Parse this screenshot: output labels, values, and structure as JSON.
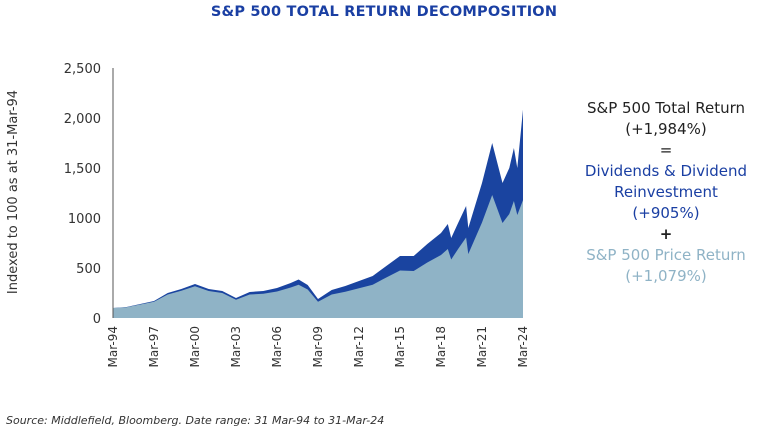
{
  "chart_data": {
    "type": "area",
    "title": "S&P 500 TOTAL RETURN DECOMPOSITION",
    "ylabel": "Indexed to 100 as at 31-Mar-94",
    "xlabel": "",
    "ylim": [
      0,
      2500
    ],
    "yticks": [
      "0",
      "500",
      "1000",
      "1,500",
      "2,000",
      "2,500"
    ],
    "ytick_values": [
      0,
      500,
      1000,
      1500,
      2000,
      2500
    ],
    "xticks": [
      "Mar-94",
      "Mar-97",
      "Mar-00",
      "Mar-03",
      "Mar-06",
      "Mar-09",
      "Mar-12",
      "Mar-15",
      "Mar-18",
      "Mar-21",
      "Mar-24"
    ],
    "grid": false,
    "stacked_layers": true,
    "x": [
      "1994-03",
      "1995-03",
      "1996-03",
      "1997-03",
      "1998-03",
      "1999-03",
      "2000-03",
      "2001-03",
      "2002-03",
      "2003-03",
      "2004-03",
      "2005-03",
      "2006-03",
      "2007-03",
      "2007-10",
      "2008-06",
      "2009-03",
      "2010-03",
      "2011-03",
      "2012-03",
      "2013-03",
      "2014-03",
      "2015-03",
      "2016-03",
      "2017-03",
      "2018-03",
      "2018-09",
      "2018-12",
      "2019-06",
      "2020-01",
      "2020-03",
      "2021-03",
      "2021-12",
      "2022-09",
      "2023-03",
      "2023-07",
      "2023-10",
      "2024-03"
    ],
    "series": [
      {
        "name": "S&P 500 Total Return",
        "color": "#1a44a0",
        "values": [
          100,
          110,
          140,
          170,
          250,
          290,
          340,
          290,
          270,
          200,
          260,
          270,
          300,
          350,
          385,
          330,
          190,
          280,
          320,
          370,
          420,
          520,
          620,
          620,
          740,
          850,
          940,
          800,
          950,
          1120,
          900,
          1350,
          1750,
          1350,
          1500,
          1700,
          1500,
          2084
        ]
      },
      {
        "name": "S&P 500 Price Return",
        "color": "#8fb3c6",
        "values": [
          100,
          108,
          135,
          162,
          235,
          272,
          318,
          270,
          250,
          182,
          235,
          242,
          265,
          305,
          332,
          285,
          162,
          235,
          262,
          298,
          333,
          405,
          475,
          470,
          555,
          630,
          690,
          585,
          690,
          805,
          640,
          955,
          1230,
          950,
          1040,
          1170,
          1030,
          1179
        ]
      }
    ]
  },
  "summary": {
    "total_label": "S&P 500 Total Return",
    "total_value": "(+1,984%)",
    "equals": "=",
    "dividend_label": "Dividends & Dividend",
    "dividend_label2": "Reinvestment",
    "dividend_value": "(+905%)",
    "plus": "+",
    "price_label": "S&P 500 Price Return",
    "price_value": "(+1,079%)"
  },
  "source": "Source: Middlefield, Bloomberg. Date range: 31 Mar-94 to 31-Mar-24"
}
